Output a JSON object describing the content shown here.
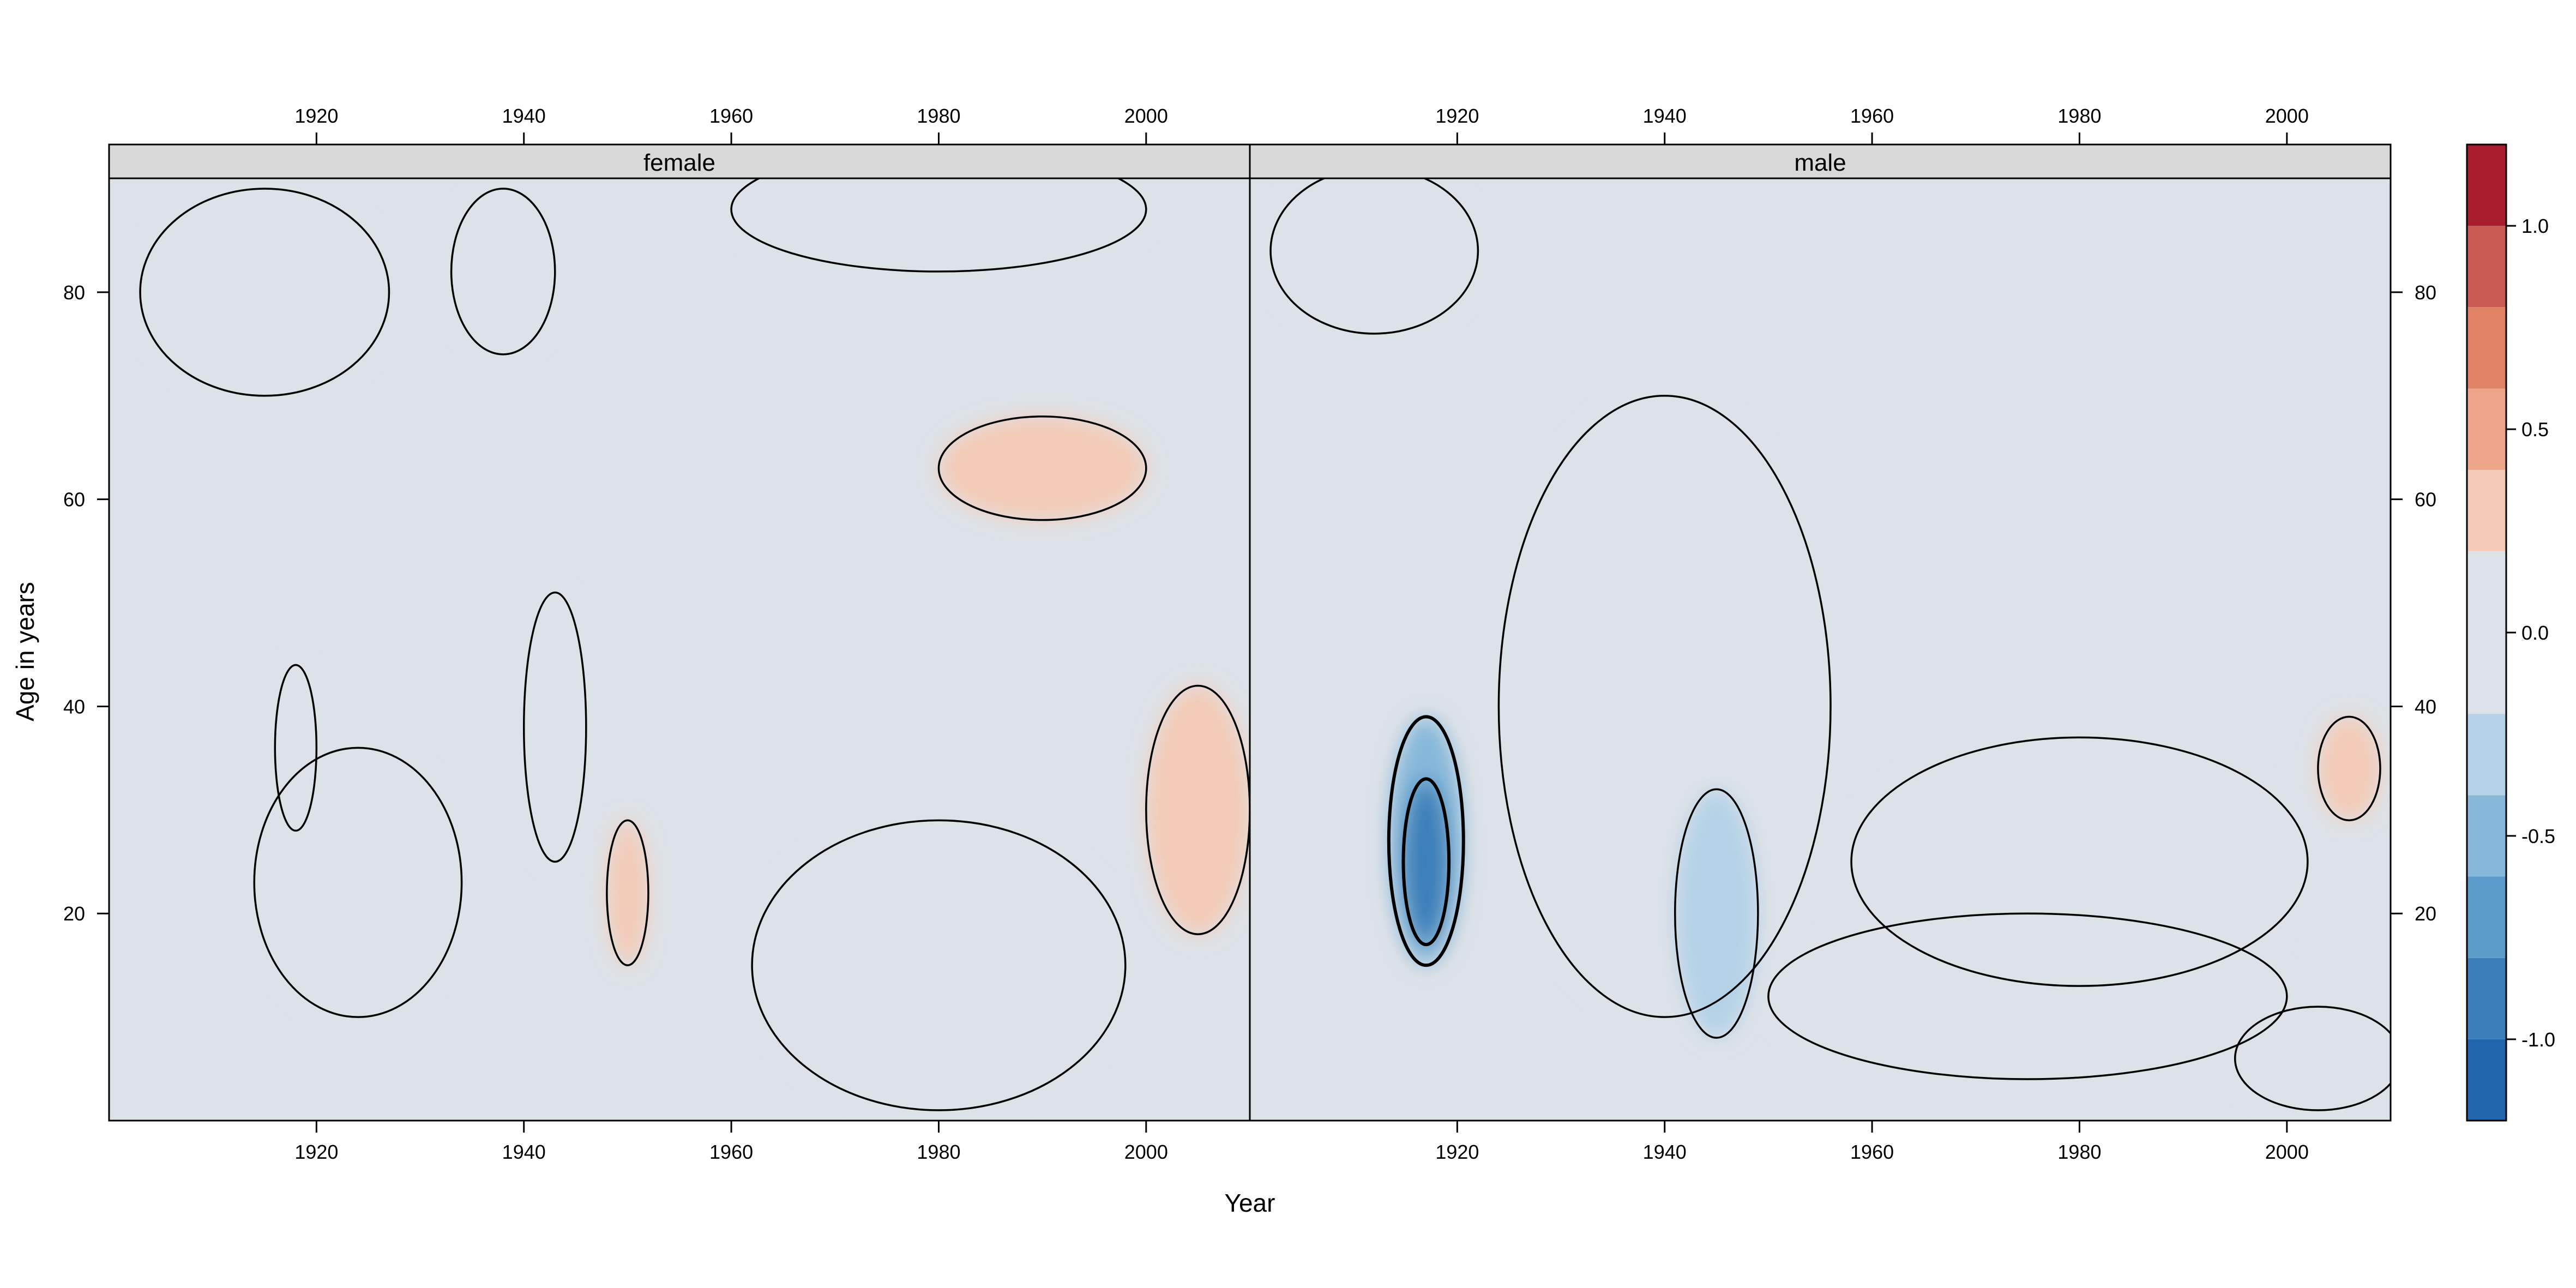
{
  "chart_data": {
    "type": "heatmap",
    "title": "",
    "xlabel": "Year",
    "ylabel": "Age in years",
    "xlim": [
      1900,
      2010
    ],
    "ylim": [
      0,
      91
    ],
    "x_ticks": [
      1920,
      1940,
      1960,
      1980,
      2000
    ],
    "y_ticks": [
      20,
      40,
      60,
      80
    ],
    "panels": [
      {
        "name": "female",
        "base_value": 0.05,
        "blobs": [
          {
            "x": 1924,
            "y": 23,
            "rx": 10,
            "ry": 13,
            "value": -0.03
          },
          {
            "x": 1918,
            "y": 36,
            "rx": 2,
            "ry": 8,
            "value": -0.03
          },
          {
            "x": 1943,
            "y": 38,
            "rx": 3,
            "ry": 13,
            "value": -0.03
          },
          {
            "x": 1938,
            "y": 82,
            "rx": 5,
            "ry": 8,
            "value": -0.03
          },
          {
            "x": 1915,
            "y": 80,
            "rx": 12,
            "ry": 10,
            "value": -0.03
          },
          {
            "x": 1980,
            "y": 88,
            "rx": 20,
            "ry": 6,
            "value": -0.03
          },
          {
            "x": 1980,
            "y": 15,
            "rx": 18,
            "ry": 14,
            "value": -0.12
          },
          {
            "x": 1950,
            "y": 22,
            "rx": 2,
            "ry": 7,
            "value": 0.2
          },
          {
            "x": 1990,
            "y": 63,
            "rx": 10,
            "ry": 5,
            "value": 0.22
          },
          {
            "x": 2005,
            "y": 30,
            "rx": 5,
            "ry": 12,
            "value": 0.2
          }
        ]
      },
      {
        "name": "male",
        "base_value": 0.05,
        "blobs": [
          {
            "x": 1940,
            "y": 40,
            "rx": 16,
            "ry": 30,
            "value": -0.05
          },
          {
            "x": 1912,
            "y": 84,
            "rx": 10,
            "ry": 8,
            "value": -0.04
          },
          {
            "x": 1917,
            "y": 27,
            "rx": 3.6,
            "ry": 12,
            "value": -0.45
          },
          {
            "x": 1917,
            "y": 25,
            "rx": 2.2,
            "ry": 8,
            "value": -0.9
          },
          {
            "x": 1945,
            "y": 20,
            "rx": 4,
            "ry": 12,
            "value": -0.3
          },
          {
            "x": 1980,
            "y": 25,
            "rx": 22,
            "ry": 12,
            "value": -0.05
          },
          {
            "x": 1975,
            "y": 12,
            "rx": 25,
            "ry": 8,
            "value": -0.1
          },
          {
            "x": 2006,
            "y": 34,
            "rx": 3,
            "ry": 5,
            "value": 0.35
          },
          {
            "x": 2003,
            "y": 6,
            "rx": 8,
            "ry": 5,
            "value": 0.15
          }
        ]
      }
    ],
    "colorbar": {
      "breaks": [
        -1.2,
        -1.1,
        -1.0,
        -0.9,
        -0.8,
        -0.7,
        -0.6,
        -0.5,
        -0.4,
        -0.3,
        -0.2,
        -0.1,
        0.1,
        0.2,
        0.3,
        0.4,
        0.5,
        0.6,
        0.7,
        0.8,
        0.9,
        1.0,
        1.1,
        1.2
      ],
      "colors": [
        "#2166ac",
        "#3a7fb9",
        "#5c9ccb",
        "#86b8da",
        "#b4d2e7",
        "#dde2e8",
        "#f4cbb7",
        "#eda689",
        "#e08266",
        "#c75b53",
        "#a91d2e"
      ],
      "band_edges": [
        -1.2,
        -1.0,
        -0.8,
        -0.6,
        -0.4,
        -0.2,
        0.2,
        0.4,
        0.6,
        0.8,
        1.0,
        1.2
      ],
      "ticks": [
        -1.0,
        -0.5,
        0.0,
        0.5,
        1.0
      ],
      "tick_labels": [
        "-1.0",
        "-0.5",
        "0.0",
        "0.5",
        "1.0"
      ]
    }
  }
}
